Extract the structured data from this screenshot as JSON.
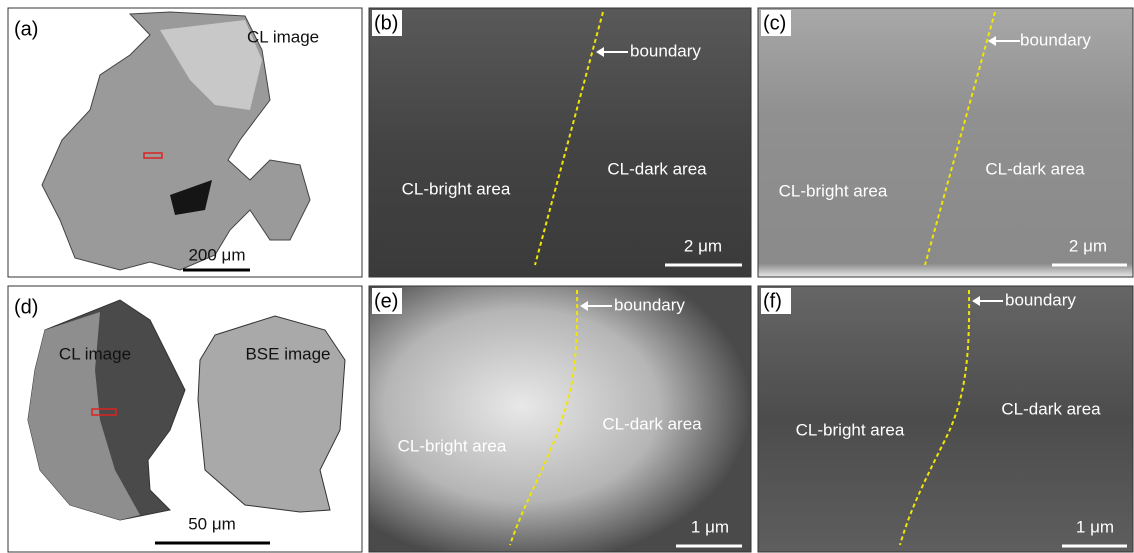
{
  "panels": [
    {
      "label": "(a)",
      "annotations": [
        "CL image"
      ],
      "scale_bar": "200 μm"
    },
    {
      "label": "(b)",
      "annotations": [
        "boundary",
        "CL-bright area",
        "CL-dark area"
      ],
      "scale_bar": "2 μm"
    },
    {
      "label": "(c)",
      "annotations": [
        "boundary",
        "CL-bright area",
        "CL-dark area"
      ],
      "scale_bar": "2 μm"
    },
    {
      "label": "(d)",
      "annotations": [
        "CL image",
        "BSE image"
      ],
      "scale_bar": "50 μm"
    },
    {
      "label": "(e)",
      "annotations": [
        "boundary",
        "CL-bright area",
        "CL-dark area"
      ],
      "scale_bar": "1 μm"
    },
    {
      "label": "(f)",
      "annotations": [
        "boundary",
        "CL-bright area",
        "CL-dark area"
      ],
      "scale_bar": "1 μm"
    }
  ]
}
